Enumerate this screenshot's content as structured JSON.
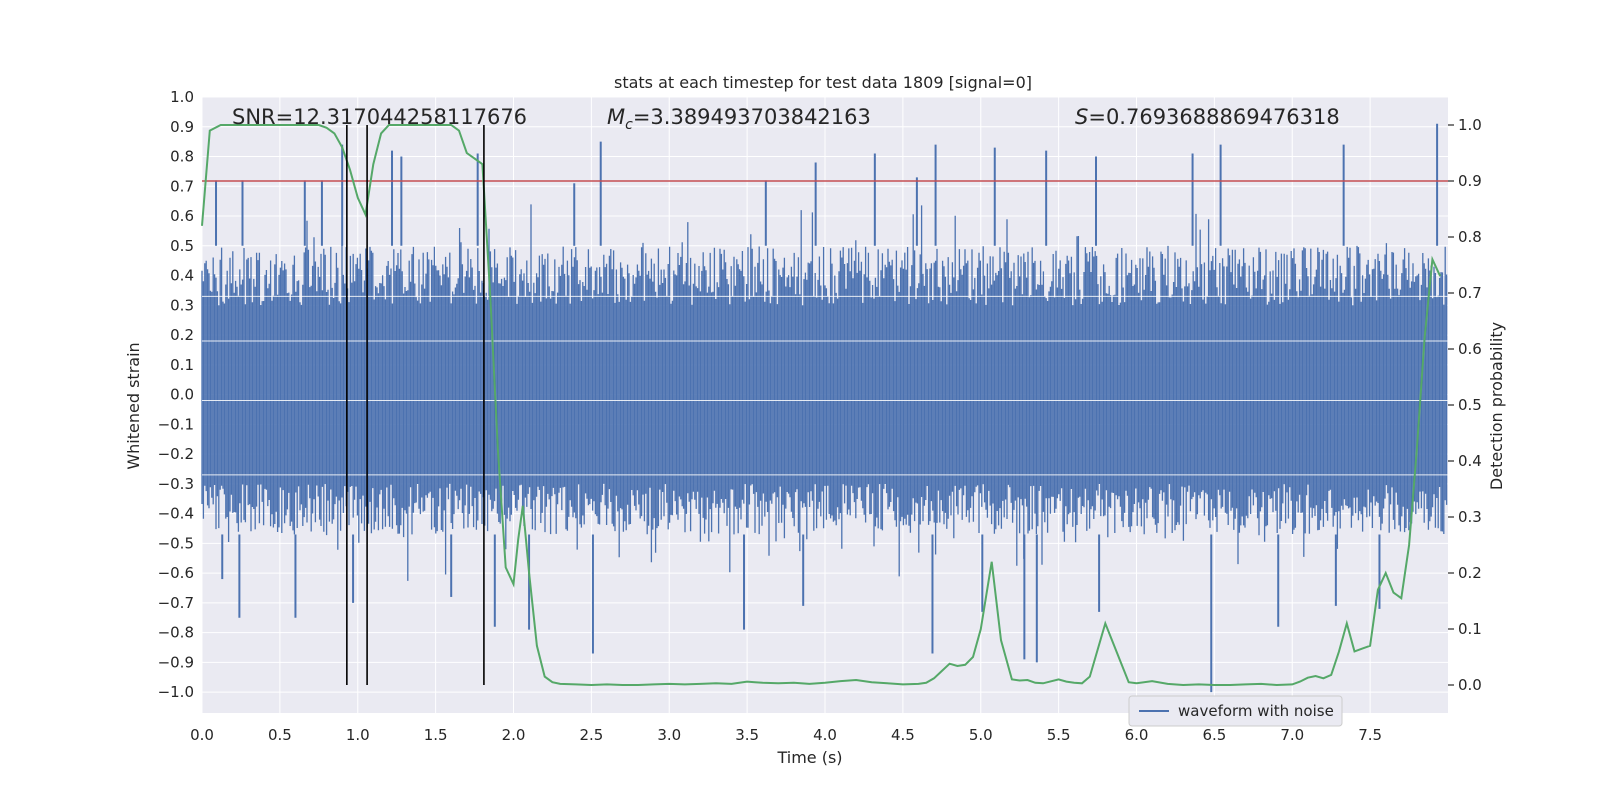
{
  "chart_data": {
    "type": "line",
    "title": "stats at each timestep for test data 1809 [signal=0]",
    "xlabel": "Time (s)",
    "ylabel_left": "Whitened strain",
    "ylabel_right": "Detection probability",
    "xlim": [
      0.0,
      8.0
    ],
    "ylim_left": [
      -1.07,
      1.0
    ],
    "ylim_right": [
      -0.05,
      1.05
    ],
    "xticks": [
      0.0,
      0.5,
      1.0,
      1.5,
      2.0,
      2.5,
      3.0,
      3.5,
      4.0,
      4.5,
      5.0,
      5.5,
      6.0,
      6.5,
      7.0,
      7.5
    ],
    "xtick_labels": [
      "0.0",
      "0.5",
      "1.0",
      "1.5",
      "2.0",
      "2.5",
      "3.0",
      "3.5",
      "4.0",
      "4.5",
      "5.0",
      "5.5",
      "6.0",
      "6.5",
      "7.0",
      "7.5"
    ],
    "yticks_left": [
      1.0,
      0.9,
      0.8,
      0.7,
      0.6,
      0.5,
      0.4,
      0.3,
      0.2,
      0.1,
      0.0,
      -0.1,
      -0.2,
      -0.3,
      -0.4,
      -0.5,
      -0.6,
      -0.7,
      -0.8,
      -0.9,
      -1.0
    ],
    "ytick_labels_left": [
      "1.0",
      "0.9",
      "0.8",
      "0.7",
      "0.6",
      "0.5",
      "0.4",
      "0.3",
      "0.2",
      "0.1",
      "0.0",
      "−0.1",
      "−0.2",
      "−0.3",
      "−0.4",
      "−0.5",
      "−0.6",
      "−0.7",
      "−0.8",
      "−0.9",
      "−1.0"
    ],
    "yticks_right": [
      0.0,
      0.1,
      0.2,
      0.3,
      0.4,
      0.5,
      0.6,
      0.7,
      0.8,
      0.9,
      1.0
    ],
    "ytick_labels_right": [
      "0.0",
      "0.1",
      "0.2",
      "0.3",
      "0.4",
      "0.5",
      "0.6",
      "0.7",
      "0.8",
      "0.9",
      "1.0"
    ],
    "annotations": {
      "snr": "SNR=12.317044258117676",
      "mc_symbol": "M",
      "mc_subscript": "c",
      "mc_value": "=3.389493703842163",
      "s_symbol": "S",
      "s_value": "=0.7693688869476318"
    },
    "threshold": {
      "value": 0.9,
      "axis": "right",
      "color": "#c44e52"
    },
    "vlines": [
      0.93,
      1.06,
      1.81
    ],
    "series": [
      {
        "name": "waveform with noise",
        "axis": "left",
        "color": "#4c72b0",
        "kind": "noise-band",
        "band_core": [
          -0.3,
          0.3
        ],
        "band_typical": [
          -0.47,
          0.5
        ],
        "spike_peaks": [
          {
            "x": 0.09,
            "y": 0.72
          },
          {
            "x": 0.26,
            "y": 0.72
          },
          {
            "x": 0.66,
            "y": 0.72
          },
          {
            "x": 0.77,
            "y": 0.72
          },
          {
            "x": 0.9,
            "y": 0.84
          },
          {
            "x": 1.22,
            "y": 0.82
          },
          {
            "x": 1.28,
            "y": 0.8
          },
          {
            "x": 1.77,
            "y": 0.81
          },
          {
            "x": 2.39,
            "y": 0.71
          },
          {
            "x": 2.56,
            "y": 0.85
          },
          {
            "x": 3.62,
            "y": 0.72
          },
          {
            "x": 3.94,
            "y": 0.78
          },
          {
            "x": 4.32,
            "y": 0.81
          },
          {
            "x": 4.59,
            "y": 0.73
          },
          {
            "x": 4.71,
            "y": 0.84
          },
          {
            "x": 5.09,
            "y": 0.83
          },
          {
            "x": 5.42,
            "y": 0.82
          },
          {
            "x": 5.74,
            "y": 0.8
          },
          {
            "x": 6.36,
            "y": 0.81
          },
          {
            "x": 6.54,
            "y": 0.84
          },
          {
            "x": 7.33,
            "y": 0.84
          },
          {
            "x": 7.93,
            "y": 0.91
          },
          {
            "x": 0.13,
            "y": -0.62
          },
          {
            "x": 0.24,
            "y": -0.75
          },
          {
            "x": 0.6,
            "y": -0.75
          },
          {
            "x": 0.97,
            "y": -0.7
          },
          {
            "x": 1.6,
            "y": -0.68
          },
          {
            "x": 1.88,
            "y": -0.78
          },
          {
            "x": 2.1,
            "y": -0.79
          },
          {
            "x": 2.51,
            "y": -0.87
          },
          {
            "x": 3.48,
            "y": -0.79
          },
          {
            "x": 3.86,
            "y": -0.71
          },
          {
            "x": 4.69,
            "y": -0.87
          },
          {
            "x": 5.01,
            "y": -0.73
          },
          {
            "x": 5.28,
            "y": -0.89
          },
          {
            "x": 5.36,
            "y": -0.9
          },
          {
            "x": 5.76,
            "y": -0.73
          },
          {
            "x": 6.48,
            "y": -1.0
          },
          {
            "x": 6.91,
            "y": -0.78
          },
          {
            "x": 7.28,
            "y": -0.71
          },
          {
            "x": 7.56,
            "y": -0.72
          }
        ]
      },
      {
        "name": "detection probability",
        "axis": "right",
        "color": "#55a868",
        "x": [
          0.0,
          0.05,
          0.12,
          0.2,
          0.3,
          0.4,
          0.5,
          0.6,
          0.7,
          0.75,
          0.8,
          0.85,
          0.9,
          0.95,
          1.0,
          1.05,
          1.1,
          1.15,
          1.2,
          1.3,
          1.4,
          1.5,
          1.6,
          1.65,
          1.7,
          1.75,
          1.8,
          1.85,
          1.9,
          1.95,
          2.0,
          2.03,
          2.06,
          2.1,
          2.15,
          2.2,
          2.25,
          2.3,
          2.4,
          2.5,
          2.6,
          2.7,
          2.8,
          2.9,
          3.0,
          3.1,
          3.2,
          3.3,
          3.4,
          3.5,
          3.55,
          3.6,
          3.7,
          3.8,
          3.9,
          4.0,
          4.1,
          4.2,
          4.3,
          4.4,
          4.5,
          4.6,
          4.65,
          4.7,
          4.75,
          4.8,
          4.85,
          4.9,
          4.95,
          5.0,
          5.07,
          5.13,
          5.2,
          5.25,
          5.3,
          5.35,
          5.4,
          5.5,
          5.55,
          5.6,
          5.65,
          5.7,
          5.8,
          5.85,
          5.9,
          5.95,
          6.0,
          6.1,
          6.2,
          6.3,
          6.4,
          6.5,
          6.6,
          6.7,
          6.8,
          6.9,
          7.0,
          7.05,
          7.1,
          7.15,
          7.2,
          7.25,
          7.3,
          7.35,
          7.4,
          7.45,
          7.5,
          7.55,
          7.6,
          7.65,
          7.7,
          7.75,
          7.8,
          7.85,
          7.9,
          7.95
        ],
        "y": [
          0.82,
          0.99,
          1.0,
          1.0,
          1.0,
          1.0,
          1.0,
          1.0,
          1.0,
          1.0,
          0.995,
          0.985,
          0.96,
          0.92,
          0.87,
          0.84,
          0.93,
          0.985,
          1.0,
          1.0,
          1.0,
          1.0,
          1.0,
          0.99,
          0.95,
          0.94,
          0.93,
          0.7,
          0.42,
          0.21,
          0.18,
          0.26,
          0.32,
          0.2,
          0.07,
          0.015,
          0.005,
          0.002,
          0.001,
          0.0,
          0.001,
          0.0,
          0.0,
          0.001,
          0.002,
          0.001,
          0.002,
          0.003,
          0.002,
          0.006,
          0.005,
          0.004,
          0.003,
          0.004,
          0.002,
          0.004,
          0.007,
          0.009,
          0.005,
          0.003,
          0.001,
          0.002,
          0.004,
          0.012,
          0.025,
          0.038,
          0.034,
          0.036,
          0.05,
          0.1,
          0.22,
          0.08,
          0.01,
          0.008,
          0.009,
          0.004,
          0.003,
          0.01,
          0.006,
          0.004,
          0.003,
          0.015,
          0.11,
          0.075,
          0.04,
          0.005,
          0.003,
          0.007,
          0.002,
          0.0,
          0.001,
          0.0,
          0.0,
          0.001,
          0.002,
          0.0,
          0.001,
          0.006,
          0.013,
          0.016,
          0.012,
          0.018,
          0.06,
          0.11,
          0.06,
          0.065,
          0.07,
          0.17,
          0.2,
          0.165,
          0.155,
          0.25,
          0.42,
          0.62,
          0.76,
          0.73
        ]
      }
    ],
    "legend": {
      "label": "waveform with noise",
      "color": "#4c72b0",
      "position": "lower-right"
    }
  },
  "colors": {
    "axes_bg": "#eaeaf2",
    "grid": "#ffffff",
    "text": "#262626",
    "waveform": "#4c72b0",
    "probability": "#55a868",
    "threshold": "#c44e52",
    "vline": "#000000"
  }
}
